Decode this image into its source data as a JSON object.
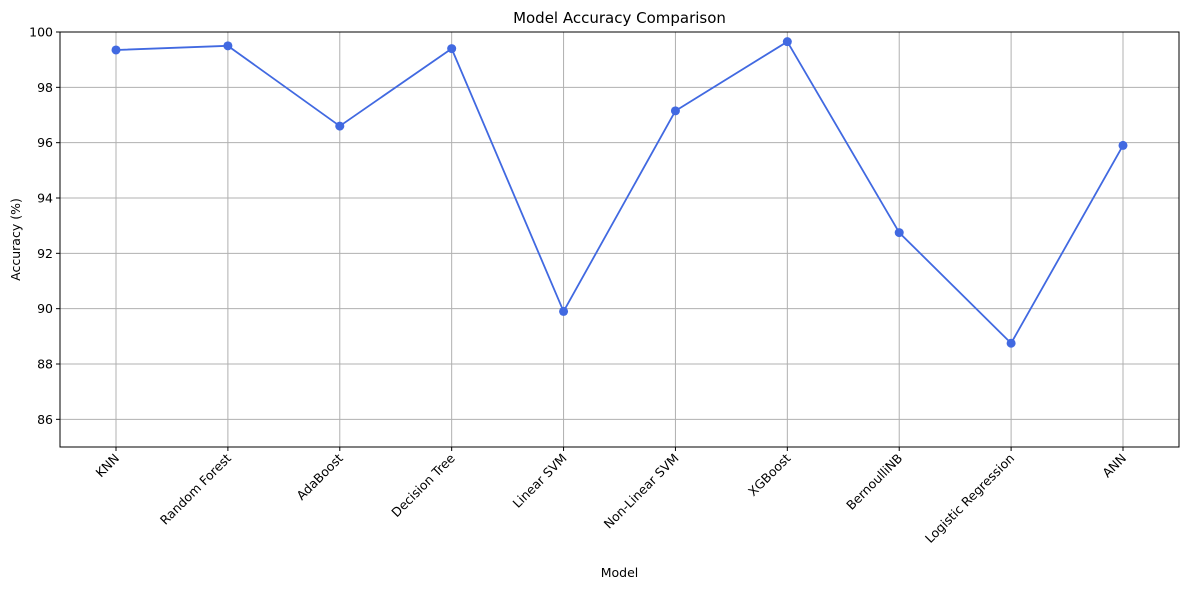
{
  "chart_data": {
    "type": "line",
    "title": "Model Accuracy Comparison",
    "xlabel": "Model",
    "ylabel": "Accuracy (%)",
    "categories": [
      "KNN",
      "Random Forest",
      "AdaBoost",
      "Decision Tree",
      "Linear SVM",
      "Non-Linear SVM",
      "XGBoost",
      "BernoulliNB",
      "Logistic Regression",
      "ANN"
    ],
    "series": [
      {
        "values": [
          99.35,
          99.5,
          96.6,
          99.4,
          89.9,
          97.15,
          99.65,
          92.75,
          88.75,
          95.9
        ],
        "color": "#4169e1",
        "marker": "circle"
      }
    ],
    "ylim": [
      85,
      100
    ],
    "yticks": [
      86,
      88,
      90,
      92,
      94,
      96,
      98,
      100
    ],
    "grid": true,
    "xtick_rotation": 45
  }
}
